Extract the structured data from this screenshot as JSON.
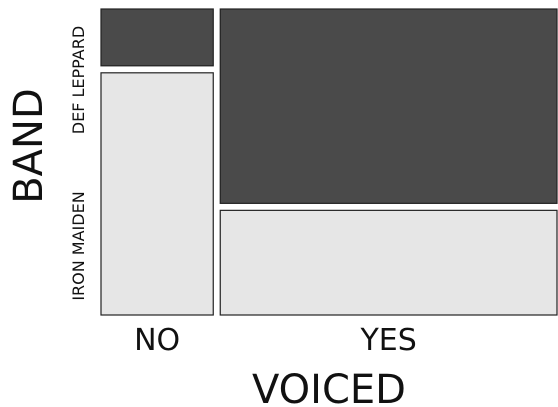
{
  "chart_data": {
    "type": "mosaic",
    "xlabel": "VOICED",
    "ylabel": "BAND",
    "x_categories": [
      "NO",
      "YES"
    ],
    "y_categories": [
      "DEF LEPPARD",
      "IRON MAIDEN"
    ],
    "x_proportions": [
      0.25,
      0.75
    ],
    "cells": [
      {
        "x": "NO",
        "y": "DEF LEPPARD",
        "proportion": 0.19
      },
      {
        "x": "NO",
        "y": "IRON MAIDEN",
        "proportion": 0.81
      },
      {
        "x": "YES",
        "y": "DEF LEPPARD",
        "proportion": 0.65
      },
      {
        "x": "YES",
        "y": "IRON MAIDEN",
        "proportion": 0.35
      }
    ],
    "colors": {
      "DEF LEPPARD": "#4a4a4a",
      "IRON MAIDEN": "#e6e6e6"
    },
    "cell_border": "#222222"
  }
}
